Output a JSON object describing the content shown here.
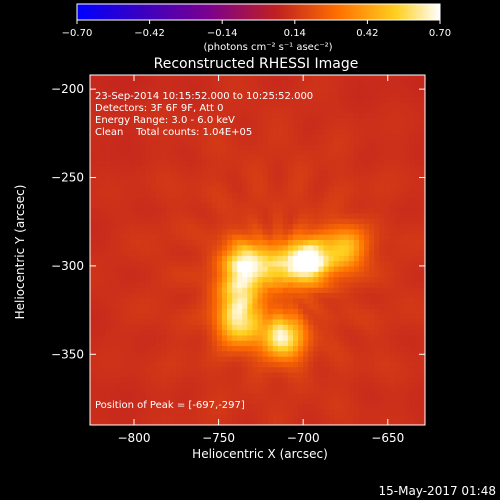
{
  "chart_data": {
    "type": "heatmap",
    "title": "Reconstructed RHESSI Image",
    "colorbar": {
      "min": -0.7,
      "max": 0.7,
      "ticks": [
        "-0.70",
        "-0.42",
        "-0.14",
        "0.14",
        "0.42",
        "0.70"
      ],
      "unit_label": "(photons cm⁻² s⁻¹ asec⁻²)",
      "colors": [
        "#0000ff",
        "#3a00c0",
        "#7a0090",
        "#c02020",
        "#ff7000",
        "#ffd020",
        "#ffffff"
      ]
    },
    "xlabel": "Heliocentric X (arcsec)",
    "ylabel": "Heliocentric Y (arcsec)",
    "xlim": [
      -826,
      -628
    ],
    "ylim": [
      -390,
      -192
    ],
    "xticks": [
      -800,
      -750,
      -700,
      -650
    ],
    "yticks": [
      -200,
      -250,
      -300,
      -350
    ],
    "info_lines": [
      "23-Sep-2014 10:15:52.000 to 10:25:52.000",
      "Detectors: 3F 6F 9F, Att 0",
      "Energy Range: 3.0 - 6.0 keV",
      "Clean    Total counts: 1.04E+05"
    ],
    "peak_text": "Position of Peak = [-697,-297]",
    "background_level": 0.15,
    "sources": [
      {
        "x": -697,
        "y": -297,
        "level": 0.7
      },
      {
        "x": -735,
        "y": -298,
        "level": 0.55
      },
      {
        "x": -712,
        "y": -340,
        "level": 0.58
      },
      {
        "x": -738,
        "y": -333,
        "level": 0.48
      },
      {
        "x": -675,
        "y": -290,
        "level": 0.42
      },
      {
        "x": -738,
        "y": -316,
        "level": 0.42
      },
      {
        "x": -716,
        "y": -300,
        "level": 0.38
      }
    ],
    "grid": false
  },
  "footer": {
    "timestamp": "15-May-2017 01:48"
  }
}
